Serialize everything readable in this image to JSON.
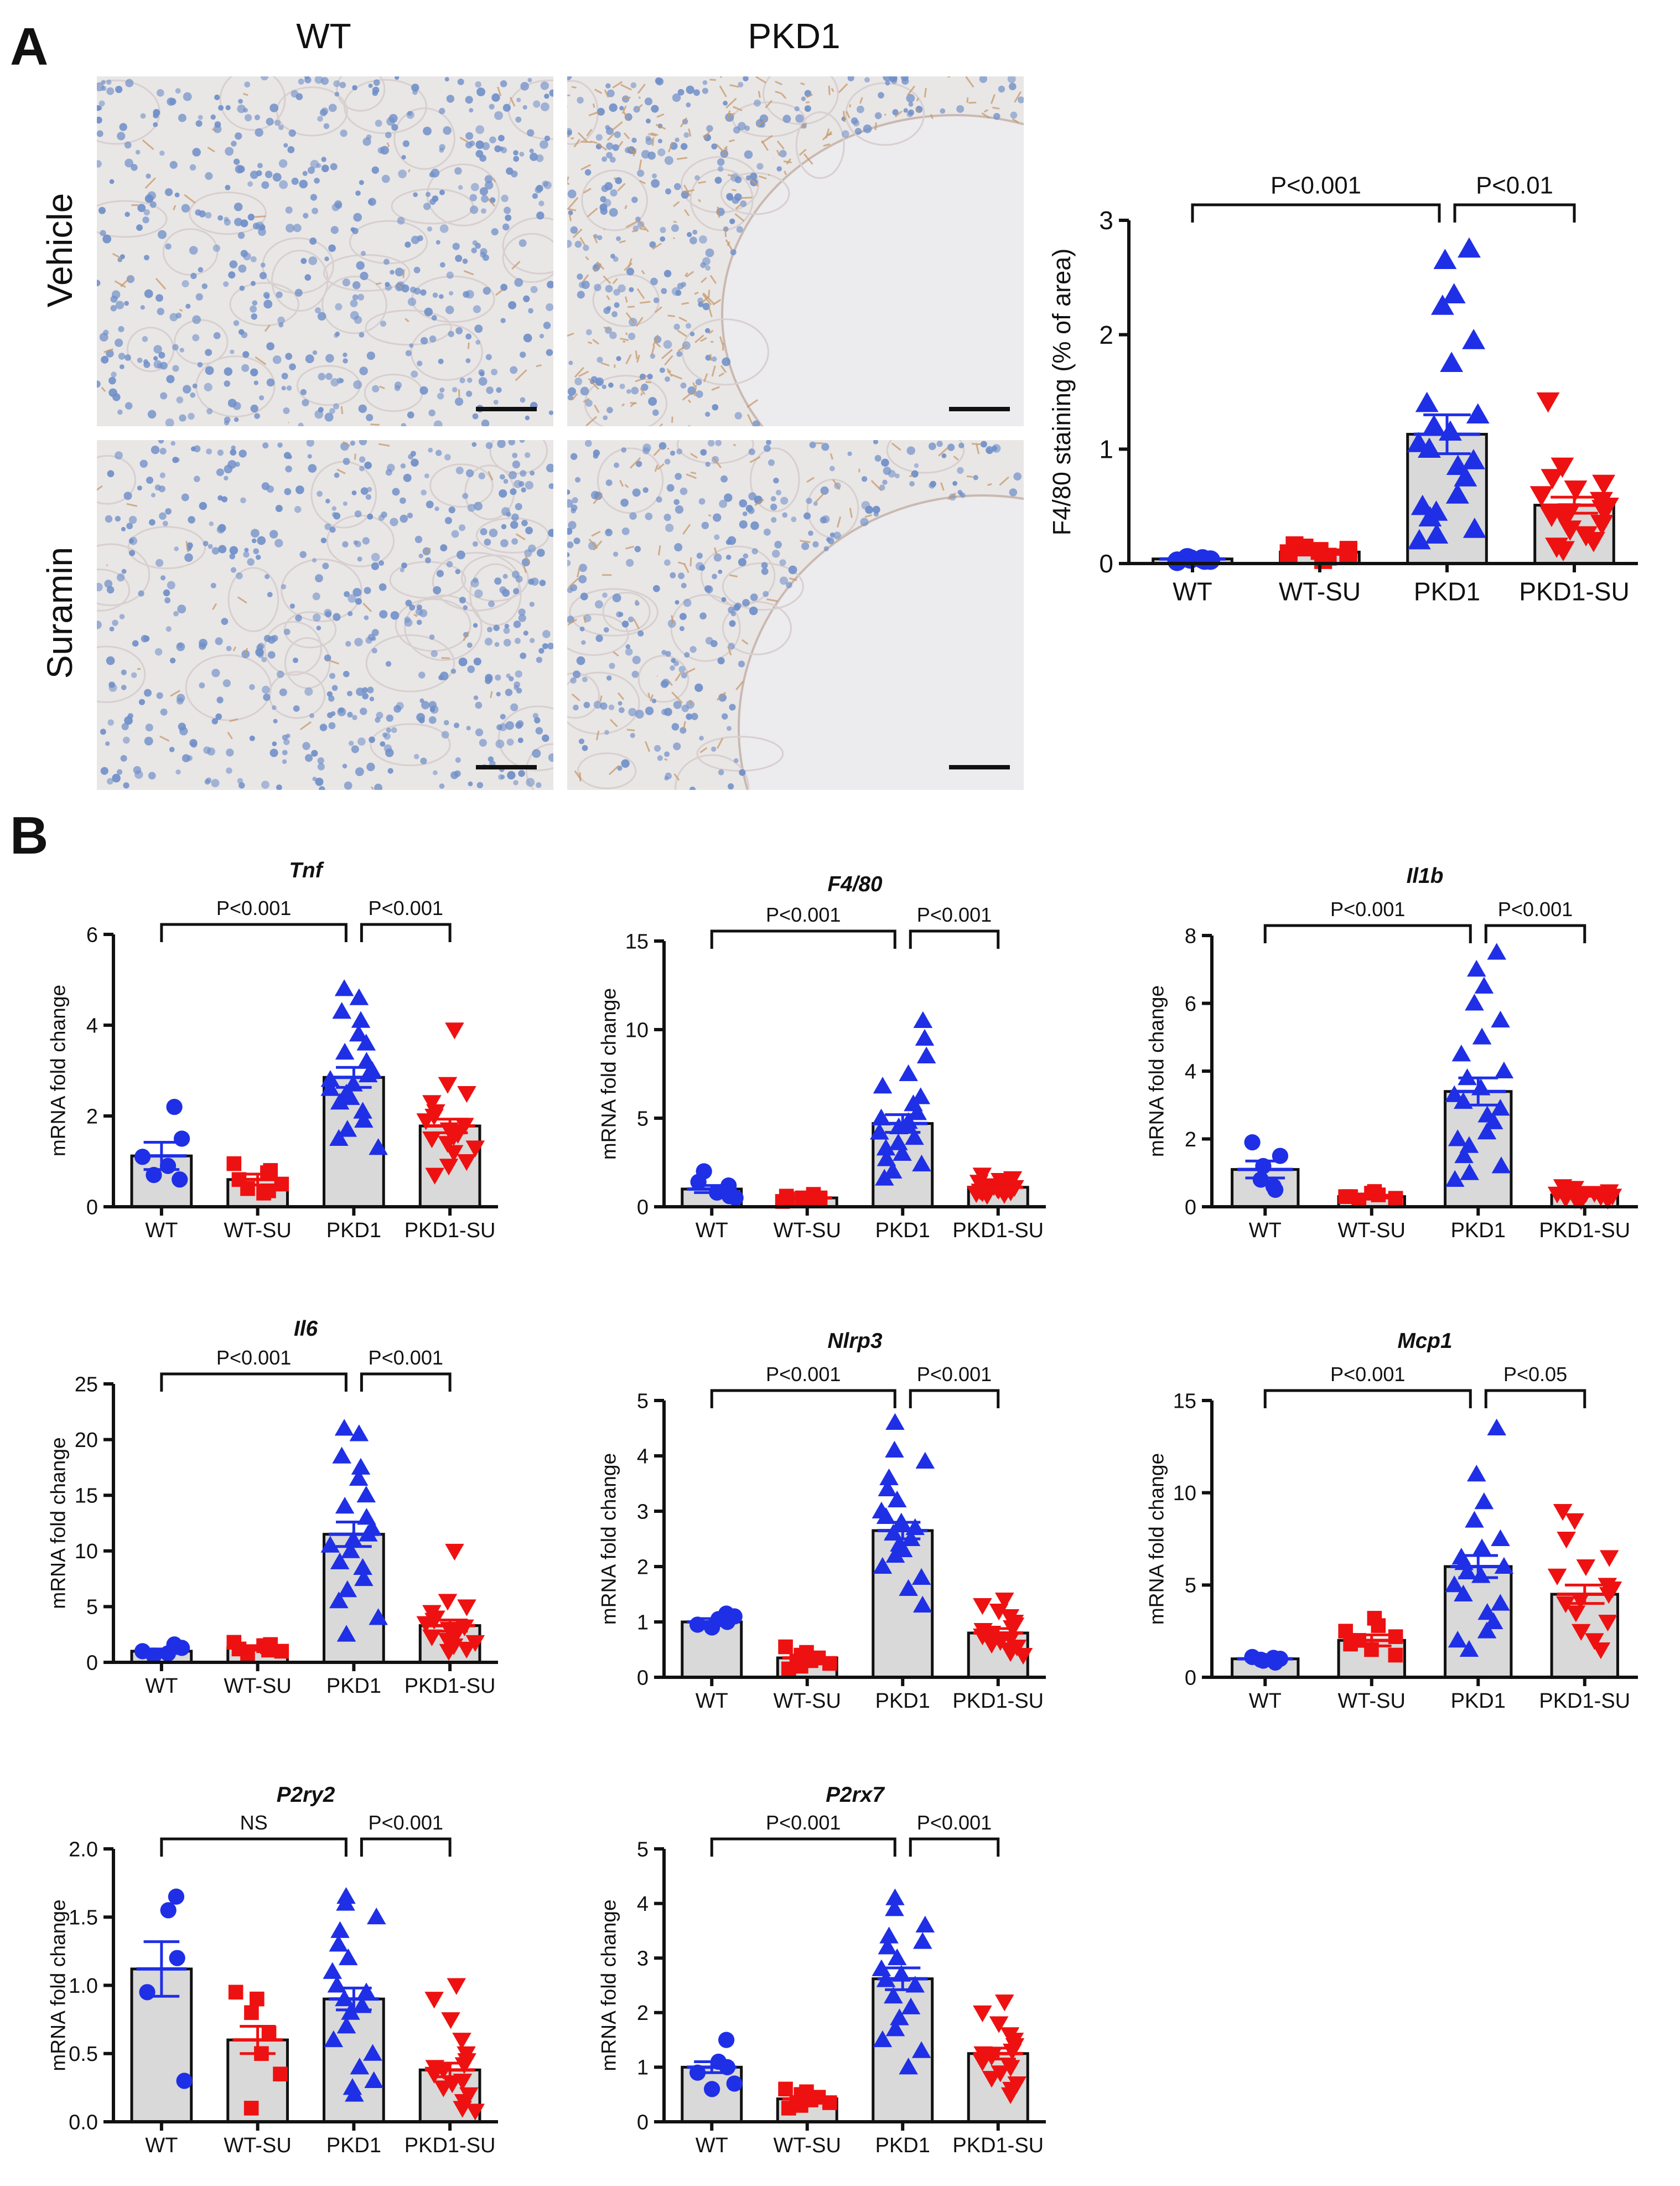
{
  "panel_a": {
    "label": "A",
    "columns": [
      "WT",
      "PKD1"
    ],
    "rows": [
      "Vehicle",
      "Suramin"
    ]
  },
  "panel_b": {
    "label": "B"
  },
  "colors": {
    "blue": "#1f2fe6",
    "red": "#ee1111",
    "bar_fill": "#d9d9d9",
    "bar_stroke": "#111111",
    "tissue_bg": "#e9e6e6",
    "nuclei": "#6f8fc8",
    "stain": "#c79a6a"
  },
  "chart_data": [
    {
      "id": "f480",
      "type": "bar",
      "title": "",
      "ylabel": "F4/80 staining (% of area)",
      "categories": [
        "WT",
        "WT-SU",
        "PKD1",
        "PKD1-SU"
      ],
      "ylim": [
        0,
        3
      ],
      "yticks": [
        0,
        1,
        2,
        3
      ],
      "means": [
        0.04,
        0.1,
        1.13,
        0.51
      ],
      "sems": [
        0.01,
        0.02,
        0.17,
        0.07
      ],
      "points": [
        [
          0.02,
          0.03,
          0.04,
          0.05,
          0.04,
          0.03
        ],
        [
          0.03,
          0.06,
          0.09,
          0.12,
          0.14,
          0.16,
          0.11,
          0.08
        ],
        [
          2.75,
          2.65,
          2.35,
          2.25,
          1.95,
          1.75,
          1.4,
          1.3,
          1.2,
          1.15,
          1.05,
          1.0,
          0.9,
          0.85,
          0.75,
          0.6,
          0.5,
          0.45,
          0.4,
          0.3,
          0.25,
          0.2
        ],
        [
          1.42,
          0.85,
          0.75,
          0.7,
          0.65,
          0.6,
          0.55,
          0.5,
          0.48,
          0.45,
          0.42,
          0.4,
          0.35,
          0.3,
          0.25,
          0.2,
          0.15,
          0.12
        ]
      ],
      "brackets": [
        {
          "from": 0,
          "to": 2,
          "label": "P<0.001"
        },
        {
          "from": 2,
          "to": 3,
          "label": "P<0.01"
        }
      ]
    },
    {
      "id": "tnf",
      "type": "bar",
      "title": "Tnf",
      "ylabel": "mRNA fold change",
      "categories": [
        "WT",
        "WT-SU",
        "PKD1",
        "PKD1-SU"
      ],
      "ylim": [
        0,
        6
      ],
      "yticks": [
        0,
        2,
        4,
        6
      ],
      "means": [
        1.12,
        0.6,
        2.85,
        1.78
      ],
      "sems": [
        0.3,
        0.12,
        0.22,
        0.15
      ],
      "points": [
        [
          2.2,
          1.5,
          1.1,
          0.9,
          0.7,
          0.6
        ],
        [
          0.95,
          0.8,
          0.75,
          0.6,
          0.5,
          0.4,
          0.3,
          0.35
        ],
        [
          4.8,
          4.6,
          4.3,
          4.1,
          3.8,
          3.6,
          3.4,
          3.2,
          3.0,
          2.9,
          2.7,
          2.6,
          2.4,
          2.3,
          2.1,
          1.9,
          1.7,
          1.5,
          1.3,
          2.5,
          2.8
        ],
        [
          3.9,
          2.7,
          2.5,
          2.3,
          2.1,
          2.0,
          1.9,
          1.8,
          1.7,
          1.6,
          1.55,
          1.5,
          1.4,
          1.3,
          1.2,
          1.0,
          0.9,
          0.7
        ]
      ],
      "brackets": [
        {
          "from": 0,
          "to": 2,
          "label": "P<0.001"
        },
        {
          "from": 2,
          "to": 3,
          "label": "P<0.001"
        }
      ]
    },
    {
      "id": "f480mrna",
      "type": "bar",
      "title": "F4/80",
      "ylabel": "mRNA fold change",
      "categories": [
        "WT",
        "WT-SU",
        "PKD1",
        "PKD1-SU"
      ],
      "ylim": [
        0,
        15
      ],
      "yticks": [
        0,
        5,
        10,
        15
      ],
      "means": [
        1.0,
        0.5,
        4.7,
        1.1
      ],
      "sems": [
        0.2,
        0.05,
        0.5,
        0.1
      ],
      "points": [
        [
          2.0,
          1.4,
          1.2,
          0.8,
          0.6,
          0.5
        ],
        [
          0.7,
          0.6,
          0.5,
          0.45,
          0.4,
          0.35,
          0.3,
          0.5
        ],
        [
          10.5,
          9.5,
          8.5,
          7.5,
          6.8,
          6.2,
          5.8,
          5.3,
          5.0,
          4.8,
          4.5,
          4.2,
          3.9,
          3.6,
          3.3,
          3.0,
          2.7,
          2.4,
          2.0,
          1.6,
          4.6
        ],
        [
          1.8,
          1.6,
          1.5,
          1.4,
          1.3,
          1.2,
          1.15,
          1.1,
          1.05,
          1.0,
          0.95,
          0.9,
          0.85,
          0.8,
          0.75,
          0.7,
          0.65
        ]
      ],
      "brackets": [
        {
          "from": 0,
          "to": 2,
          "label": "P<0.001"
        },
        {
          "from": 2,
          "to": 3,
          "label": "P<0.001"
        }
      ]
    },
    {
      "id": "il1b",
      "type": "bar",
      "title": "Il1b",
      "ylabel": "mRNA fold change",
      "categories": [
        "WT",
        "WT-SU",
        "PKD1",
        "PKD1-SU"
      ],
      "ylim": [
        0,
        8
      ],
      "yticks": [
        0,
        2,
        4,
        6,
        8
      ],
      "means": [
        1.1,
        0.3,
        3.4,
        0.35
      ],
      "sems": [
        0.25,
        0.04,
        0.4,
        0.04
      ],
      "points": [
        [
          1.9,
          1.5,
          1.2,
          0.8,
          0.6,
          0.5
        ],
        [
          0.45,
          0.35,
          0.3,
          0.25,
          0.2,
          0.3,
          0.4,
          0.2
        ],
        [
          7.5,
          7.0,
          6.5,
          6.0,
          5.5,
          5.0,
          4.5,
          4.0,
          3.8,
          3.5,
          3.3,
          3.1,
          2.9,
          2.7,
          2.5,
          2.2,
          2.0,
          1.8,
          1.5,
          1.2,
          1.0,
          0.8
        ],
        [
          0.6,
          0.55,
          0.5,
          0.45,
          0.4,
          0.38,
          0.35,
          0.32,
          0.3,
          0.28,
          0.25,
          0.22,
          0.2,
          0.18,
          0.4,
          0.3
        ]
      ],
      "brackets": [
        {
          "from": 0,
          "to": 2,
          "label": "P<0.001"
        },
        {
          "from": 2,
          "to": 3,
          "label": "P<0.001"
        }
      ]
    },
    {
      "id": "il6",
      "type": "bar",
      "title": "Il6",
      "ylabel": "mRNA fold change",
      "categories": [
        "WT",
        "WT-SU",
        "PKD1",
        "PKD1-SU"
      ],
      "ylim": [
        0,
        25
      ],
      "yticks": [
        0,
        5,
        10,
        15,
        20,
        25
      ],
      "means": [
        1.0,
        1.3,
        11.5,
        3.3
      ],
      "sems": [
        0.2,
        0.2,
        1.1,
        0.5
      ],
      "points": [
        [
          1.6,
          1.3,
          1.0,
          0.8,
          0.6
        ],
        [
          1.8,
          1.6,
          1.4,
          1.2,
          1.0,
          0.8,
          1.5,
          1.1
        ],
        [
          21.0,
          20.5,
          18.5,
          17.5,
          16.5,
          15.0,
          14.0,
          13.0,
          12.0,
          11.5,
          11.0,
          10.5,
          10.0,
          9.0,
          8.5,
          7.5,
          6.5,
          5.5,
          4.0,
          2.5
        ],
        [
          10.0,
          5.5,
          5.0,
          4.5,
          4.0,
          3.8,
          3.5,
          3.2,
          3.0,
          2.8,
          2.5,
          2.3,
          2.0,
          1.8,
          1.5,
          1.2,
          1.0
        ]
      ],
      "brackets": [
        {
          "from": 0,
          "to": 2,
          "label": "P<0.001"
        },
        {
          "from": 2,
          "to": 3,
          "label": "P<0.001"
        }
      ]
    },
    {
      "id": "nlrp3",
      "type": "bar",
      "title": "Nlrp3",
      "ylabel": "mRNA fold change",
      "categories": [
        "WT",
        "WT-SU",
        "PKD1",
        "PKD1-SU"
      ],
      "ylim": [
        0,
        5
      ],
      "yticks": [
        0,
        1,
        2,
        3,
        4,
        5
      ],
      "means": [
        1.0,
        0.35,
        2.65,
        0.8
      ],
      "sems": [
        0.06,
        0.05,
        0.15,
        0.08
      ],
      "points": [
        [
          1.15,
          1.05,
          1.0,
          0.95,
          1.1,
          0.9
        ],
        [
          0.55,
          0.45,
          0.4,
          0.35,
          0.3,
          0.25,
          0.2,
          0.15
        ],
        [
          4.6,
          4.1,
          3.9,
          3.6,
          3.4,
          3.2,
          3.0,
          2.9,
          2.7,
          2.6,
          2.5,
          2.4,
          2.2,
          2.0,
          1.8,
          1.6,
          1.3,
          2.8,
          2.3
        ],
        [
          1.4,
          1.3,
          1.2,
          1.1,
          1.0,
          0.95,
          0.9,
          0.85,
          0.8,
          0.75,
          0.7,
          0.65,
          0.6,
          0.55,
          0.5,
          0.45,
          0.4
        ]
      ],
      "brackets": [
        {
          "from": 0,
          "to": 2,
          "label": "P<0.001"
        },
        {
          "from": 2,
          "to": 3,
          "label": "P<0.001"
        }
      ]
    },
    {
      "id": "mcp1",
      "type": "bar",
      "title": "Mcp1",
      "ylabel": "mRNA fold change",
      "categories": [
        "WT",
        "WT-SU",
        "PKD1",
        "PKD1-SU"
      ],
      "ylim": [
        0,
        15
      ],
      "yticks": [
        0,
        5,
        10,
        15
      ],
      "means": [
        1.0,
        2.0,
        6.0,
        4.5
      ],
      "sems": [
        0.1,
        0.3,
        0.6,
        0.5
      ],
      "points": [
        [
          1.1,
          1.0,
          0.9,
          0.95,
          1.05,
          0.8
        ],
        [
          3.2,
          2.8,
          2.5,
          2.2,
          2.0,
          1.8,
          1.5,
          1.2
        ],
        [
          13.5,
          11.0,
          9.5,
          8.5,
          7.5,
          7.0,
          6.5,
          6.0,
          5.7,
          5.5,
          5.0,
          4.5,
          4.0,
          3.5,
          3.0,
          2.5,
          2.0,
          1.5,
          6.2
        ],
        [
          9.0,
          8.5,
          7.5,
          6.5,
          6.0,
          5.5,
          5.0,
          4.8,
          4.5,
          4.2,
          4.0,
          3.5,
          3.0,
          2.5,
          2.0,
          1.5
        ]
      ],
      "brackets": [
        {
          "from": 0,
          "to": 2,
          "label": "P<0.001"
        },
        {
          "from": 2,
          "to": 3,
          "label": "P<0.05"
        }
      ]
    },
    {
      "id": "p2ry2",
      "type": "bar",
      "title": "P2ry2",
      "ylabel": "mRNA fold change",
      "categories": [
        "WT",
        "WT-SU",
        "PKD1",
        "PKD1-SU"
      ],
      "ylim": [
        0,
        2.0
      ],
      "yticks": [
        0.0,
        0.5,
        1.0,
        1.5,
        2.0
      ],
      "means": [
        1.12,
        0.6,
        0.9,
        0.38
      ],
      "sems": [
        0.2,
        0.1,
        0.08,
        0.05
      ],
      "points": [
        [
          1.65,
          1.55,
          1.2,
          0.95,
          0.3
        ],
        [
          0.95,
          0.9,
          0.8,
          0.65,
          0.5,
          0.35,
          0.1
        ],
        [
          1.65,
          1.6,
          1.5,
          1.4,
          1.3,
          1.2,
          1.1,
          1.0,
          0.95,
          0.9,
          0.85,
          0.8,
          0.7,
          0.6,
          0.5,
          0.4,
          0.3,
          0.25,
          0.2
        ],
        [
          1.0,
          0.9,
          0.75,
          0.6,
          0.5,
          0.45,
          0.42,
          0.4,
          0.38,
          0.35,
          0.3,
          0.28,
          0.25,
          0.2,
          0.15,
          0.1,
          0.08
        ]
      ],
      "brackets": [
        {
          "from": 0,
          "to": 2,
          "label": "NS"
        },
        {
          "from": 2,
          "to": 3,
          "label": "P<0.001"
        }
      ]
    },
    {
      "id": "p2rx7",
      "type": "bar",
      "title": "P2rx7",
      "ylabel": "mRNA fold change",
      "categories": [
        "WT",
        "WT-SU",
        "PKD1",
        "PKD1-SU"
      ],
      "ylim": [
        0,
        5
      ],
      "yticks": [
        0,
        1,
        2,
        3,
        4,
        5
      ],
      "means": [
        1.0,
        0.42,
        2.62,
        1.25
      ],
      "sems": [
        0.1,
        0.04,
        0.2,
        0.1
      ],
      "points": [
        [
          1.5,
          1.1,
          1.0,
          0.9,
          0.7,
          0.6
        ],
        [
          0.6,
          0.55,
          0.5,
          0.45,
          0.4,
          0.35,
          0.3,
          0.25
        ],
        [
          4.1,
          3.9,
          3.6,
          3.4,
          3.2,
          3.0,
          2.8,
          2.6,
          2.5,
          2.3,
          2.1,
          1.9,
          1.7,
          1.5,
          1.3,
          1.0,
          3.3,
          2.7
        ],
        [
          2.2,
          2.0,
          1.8,
          1.6,
          1.5,
          1.4,
          1.3,
          1.25,
          1.2,
          1.1,
          1.0,
          0.9,
          0.8,
          0.7,
          0.6,
          0.5
        ]
      ],
      "brackets": [
        {
          "from": 0,
          "to": 2,
          "label": "P<0.001"
        },
        {
          "from": 2,
          "to": 3,
          "label": "P<0.001"
        }
      ]
    }
  ]
}
